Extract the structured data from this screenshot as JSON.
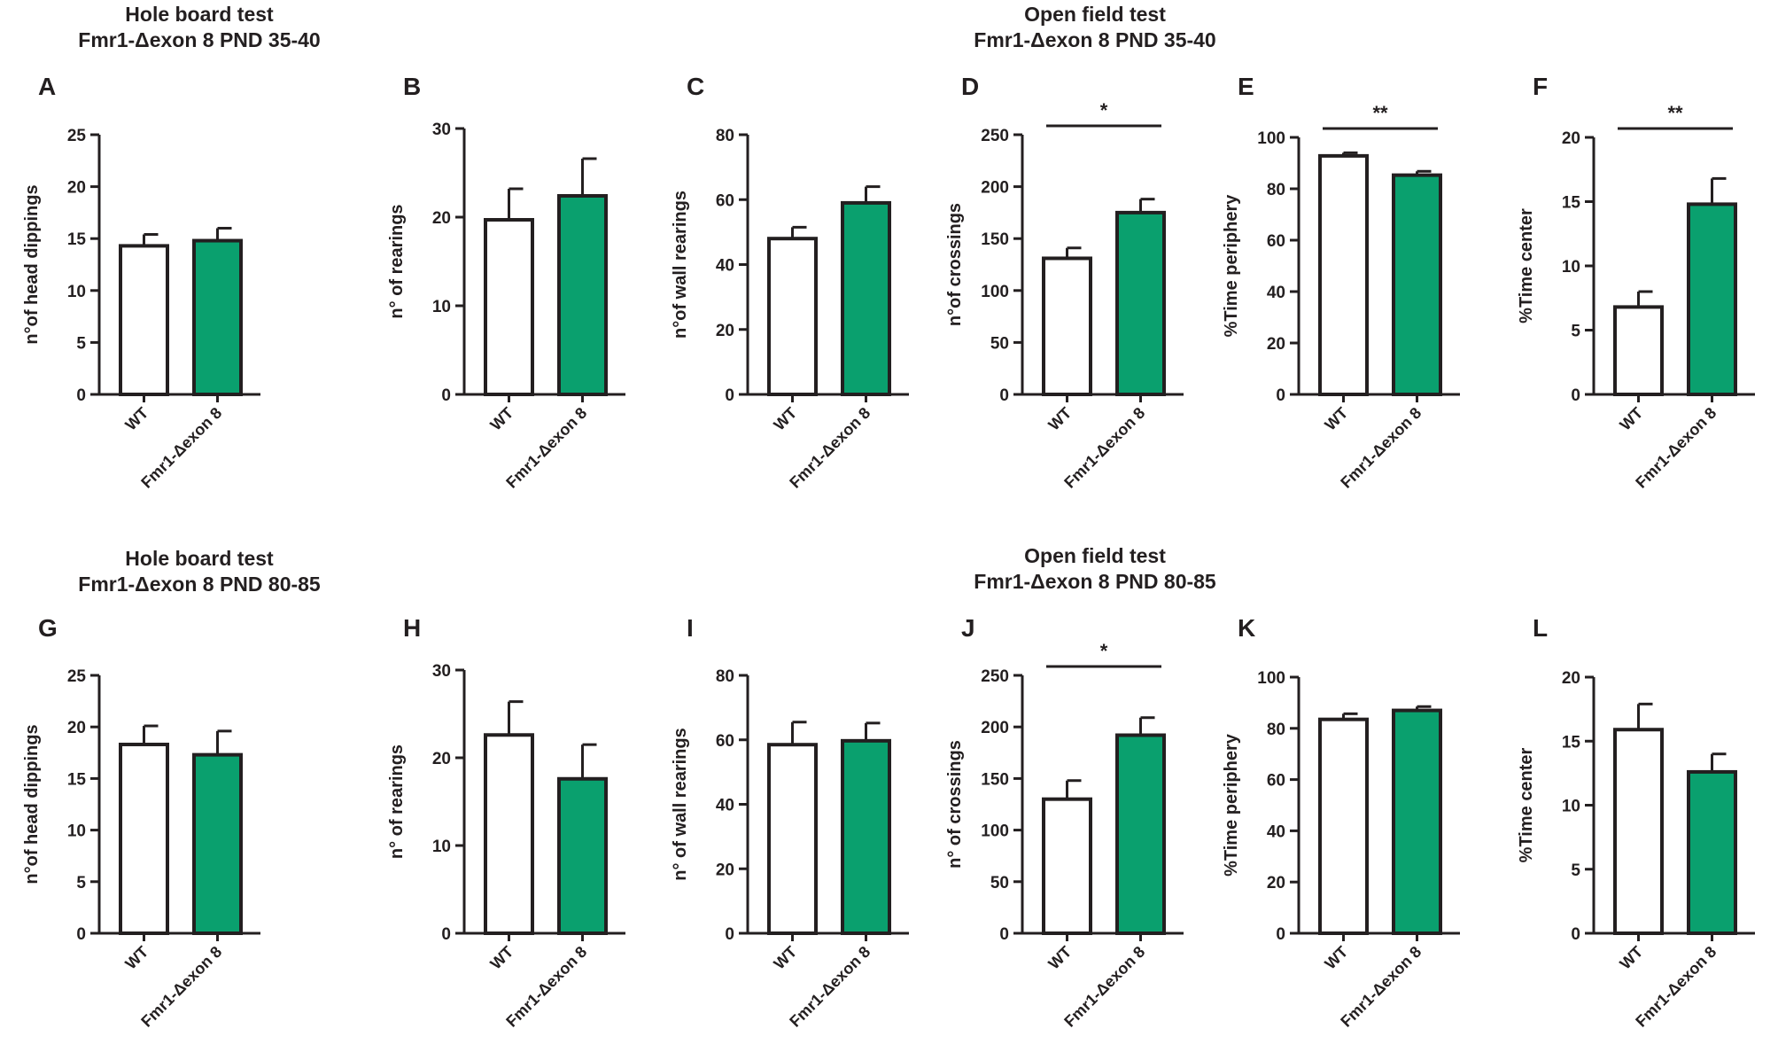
{
  "colors": {
    "wt_fill": "#ffffff",
    "mutant_fill": "#0aa06e",
    "stroke": "#231f20"
  },
  "section_titles": [
    {
      "line1": "Hole board test",
      "line2": "Fmr1-Δexon 8 PND 35-40"
    },
    {
      "line1": "Open field test",
      "line2": "Fmr1-Δexon 8 PND 35-40"
    },
    {
      "line1": "Hole board test",
      "line2": "Fmr1-Δexon 8 PND 80-85"
    },
    {
      "line1": "Open field test",
      "line2": "Fmr1-Δexon 8 PND 80-85"
    }
  ],
  "chart_data": [
    {
      "panel": "A",
      "type": "bar",
      "ylabel": "n°of head dippings",
      "ylim": [
        0,
        25
      ],
      "yticks": [
        0,
        5,
        10,
        15,
        20,
        25
      ],
      "categories": [
        "WT",
        "Fmr1-Δexon 8"
      ],
      "values": [
        14.3,
        14.8
      ],
      "errors": [
        1.1,
        1.2
      ],
      "significance": ""
    },
    {
      "panel": "B",
      "type": "bar",
      "ylabel": "n° of rearings",
      "ylim": [
        0,
        30
      ],
      "yticks": [
        0,
        10,
        20,
        30
      ],
      "categories": [
        "WT",
        "Fmr1-Δexon 8"
      ],
      "values": [
        19.7,
        22.4
      ],
      "errors": [
        3.5,
        4.2
      ],
      "significance": ""
    },
    {
      "panel": "C",
      "type": "bar",
      "ylabel": "n°of wall rearings",
      "ylim": [
        0,
        80
      ],
      "yticks": [
        0,
        20,
        40,
        60,
        80
      ],
      "categories": [
        "WT",
        "Fmr1-Δexon 8"
      ],
      "values": [
        48,
        59
      ],
      "errors": [
        3.5,
        5
      ],
      "significance": ""
    },
    {
      "panel": "D",
      "type": "bar",
      "ylabel": "n°of crossings",
      "ylim": [
        0,
        250
      ],
      "yticks": [
        0,
        50,
        100,
        150,
        200,
        250
      ],
      "categories": [
        "WT",
        "Fmr1-Δexon 8"
      ],
      "values": [
        131,
        175
      ],
      "errors": [
        10,
        13
      ],
      "significance": "*"
    },
    {
      "panel": "E",
      "type": "bar",
      "ylabel": "%Time periphery",
      "ylim": [
        0,
        100
      ],
      "yticks": [
        0,
        20,
        40,
        60,
        80,
        100
      ],
      "categories": [
        "WT",
        "Fmr1-Δexon 8"
      ],
      "values": [
        92.8,
        85.3
      ],
      "errors": [
        1.2,
        1.5
      ],
      "significance": "**"
    },
    {
      "panel": "F",
      "type": "bar",
      "ylabel": "%Time center",
      "ylim": [
        0,
        20
      ],
      "yticks": [
        0,
        5,
        10,
        15,
        20
      ],
      "categories": [
        "WT",
        "Fmr1-Δexon 8"
      ],
      "values": [
        6.8,
        14.8
      ],
      "errors": [
        1.2,
        2
      ],
      "significance": "**"
    },
    {
      "panel": "G",
      "type": "bar",
      "ylabel": "n°of head dippings",
      "ylim": [
        0,
        25
      ],
      "yticks": [
        0,
        5,
        10,
        15,
        20,
        25
      ],
      "categories": [
        "WT",
        "Fmr1-Δexon 8"
      ],
      "values": [
        18.3,
        17.3
      ],
      "errors": [
        1.8,
        2.3
      ],
      "significance": ""
    },
    {
      "panel": "H",
      "type": "bar",
      "ylabel": "n° of rearings",
      "ylim": [
        0,
        30
      ],
      "yticks": [
        0,
        10,
        20,
        30
      ],
      "categories": [
        "WT",
        "Fmr1-Δexon 8"
      ],
      "values": [
        22.6,
        17.6
      ],
      "errors": [
        3.8,
        3.9
      ],
      "significance": ""
    },
    {
      "panel": "I",
      "type": "bar",
      "ylabel": "n° of wall rearings",
      "ylim": [
        0,
        80
      ],
      "yticks": [
        0,
        20,
        40,
        60,
        80
      ],
      "categories": [
        "WT",
        "Fmr1-Δexon 8"
      ],
      "values": [
        58.5,
        59.7
      ],
      "errors": [
        7,
        5.5
      ],
      "significance": ""
    },
    {
      "panel": "J",
      "type": "bar",
      "ylabel": "n° of crossings",
      "ylim": [
        0,
        250
      ],
      "yticks": [
        0,
        50,
        100,
        150,
        200,
        250
      ],
      "categories": [
        "WT",
        "Fmr1-Δexon 8"
      ],
      "values": [
        130,
        192
      ],
      "errors": [
        18,
        17
      ],
      "significance": "*"
    },
    {
      "panel": "K",
      "type": "bar",
      "ylabel": "%Time periphery",
      "ylim": [
        0,
        100
      ],
      "yticks": [
        0,
        20,
        40,
        60,
        80,
        100
      ],
      "categories": [
        "WT",
        "Fmr1-Δexon 8"
      ],
      "values": [
        83.5,
        87
      ],
      "errors": [
        2.2,
        1.5
      ],
      "significance": ""
    },
    {
      "panel": "L",
      "type": "bar",
      "ylabel": "%Time center",
      "ylim": [
        0,
        20
      ],
      "yticks": [
        0,
        5,
        10,
        15,
        20
      ],
      "categories": [
        "WT",
        "Fmr1-Δexon 8"
      ],
      "values": [
        15.9,
        12.6
      ],
      "errors": [
        2,
        1.4
      ],
      "significance": ""
    }
  ]
}
